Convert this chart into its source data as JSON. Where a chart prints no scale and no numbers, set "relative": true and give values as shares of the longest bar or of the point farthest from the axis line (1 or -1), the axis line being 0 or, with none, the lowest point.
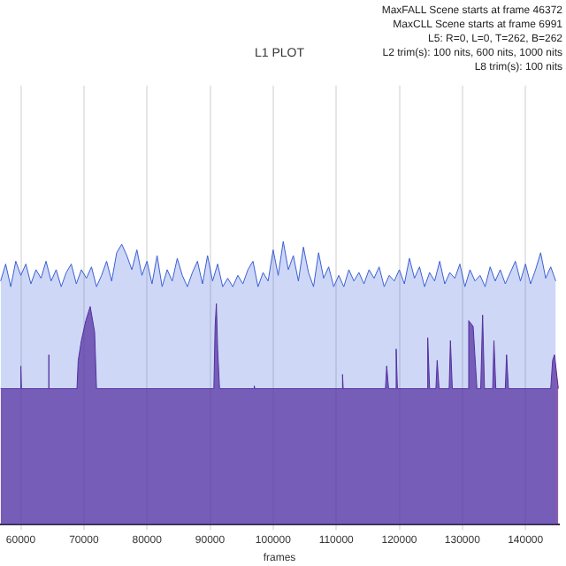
{
  "chart_data": {
    "type": "area",
    "title": "L1 PLOT",
    "xlabel": "frames",
    "relative": true,
    "grid": "x",
    "legend": false,
    "annotations": [
      "MaxFALL Scene starts at frame 46372",
      "MaxCLL Scene starts at frame 6991",
      "L5: R=0, L=0, T=262, B=262",
      "L2 trim(s): 100 nits, 600 nits, 1000 nits",
      "L8 trim(s): 100 nits"
    ],
    "xlim": [
      56700,
      145300
    ],
    "xticks": [
      60000,
      70000,
      80000,
      90000,
      100000,
      110000,
      120000,
      130000,
      140000
    ],
    "series": [
      {
        "color": "#3a5fd8",
        "x": [
          56800,
          57600,
          58400,
          59200,
          60000,
          60800,
          61600,
          62400,
          63200,
          64000,
          64800,
          65600,
          66400,
          67200,
          68000,
          68800,
          69600,
          70400,
          71200,
          72000,
          72800,
          73600,
          74400,
          75200,
          76000,
          76800,
          77600,
          78400,
          79200,
          80000,
          80800,
          81600,
          82400,
          83200,
          84000,
          84800,
          85600,
          86400,
          87200,
          88000,
          88800,
          89600,
          90400,
          91200,
          92000,
          92800,
          93600,
          94400,
          95200,
          96000,
          96800,
          97600,
          98400,
          99200,
          100000,
          100800,
          101600,
          102400,
          103200,
          104000,
          104800,
          105600,
          106400,
          107200,
          108000,
          108800,
          109600,
          110400,
          111200,
          112000,
          112800,
          113600,
          114400,
          115200,
          116000,
          116800,
          117600,
          118400,
          119200,
          120000,
          120800,
          121600,
          122400,
          123200,
          124000,
          124800,
          125600,
          126400,
          127200,
          128000,
          128800,
          129600,
          130400,
          131200,
          132000,
          132800,
          133600,
          134400,
          135200,
          136000,
          136800,
          137600,
          138400,
          139200,
          140000,
          140800,
          141600,
          142400,
          143200,
          144000,
          144800
        ],
        "values": [
          0.86,
          0.92,
          0.84,
          0.93,
          0.88,
          0.92,
          0.85,
          0.9,
          0.87,
          0.93,
          0.86,
          0.9,
          0.84,
          0.89,
          0.92,
          0.85,
          0.9,
          0.87,
          0.91,
          0.84,
          0.88,
          0.93,
          0.86,
          0.96,
          0.99,
          0.95,
          0.9,
          0.97,
          0.88,
          0.93,
          0.85,
          0.95,
          0.84,
          0.9,
          0.86,
          0.94,
          0.88,
          0.84,
          0.89,
          0.93,
          0.85,
          0.95,
          0.86,
          0.92,
          0.84,
          0.87,
          0.84,
          0.88,
          0.85,
          0.9,
          0.93,
          0.84,
          0.89,
          0.86,
          0.97,
          0.88,
          1,
          0.9,
          0.95,
          0.86,
          0.98,
          0.89,
          0.84,
          0.96,
          0.87,
          0.91,
          0.84,
          0.88,
          0.84,
          0.9,
          0.86,
          0.89,
          0.85,
          0.9,
          0.87,
          0.91,
          0.84,
          0.88,
          0.86,
          0.9,
          0.85,
          0.94,
          0.87,
          0.91,
          0.84,
          0.89,
          0.86,
          0.93,
          0.85,
          0.89,
          0.87,
          0.92,
          0.84,
          0.9,
          0.86,
          0.88,
          0.84,
          0.91,
          0.86,
          0.9,
          0.85,
          0.89,
          0.93,
          0.86,
          0.92,
          0.85,
          0.9,
          0.96,
          0.87,
          0.91,
          0.86
        ]
      },
      {
        "color": "#5b1f8f",
        "x": [
          56800,
          59900,
          60000,
          60100,
          64300,
          64400,
          64500,
          68900,
          69100,
          69600,
          70300,
          71000,
          71700,
          72000,
          90600,
          90800,
          91000,
          91200,
          91500,
          96900,
          97000,
          97100,
          110900,
          111000,
          111100,
          117800,
          118000,
          118300,
          119300,
          119500,
          119700,
          124300,
          124500,
          124800,
          125800,
          126000,
          126300,
          127900,
          128100,
          128400,
          130800,
          131000,
          131700,
          132300,
          132900,
          133200,
          133500,
          134800,
          135000,
          135300,
          136800,
          137000,
          137300,
          144000,
          144300,
          144600,
          145200
        ],
        "values": [
          0.48,
          0.48,
          0.56,
          0.48,
          0.48,
          0.6,
          0.48,
          0.48,
          0.58,
          0.65,
          0.72,
          0.77,
          0.68,
          0.48,
          0.48,
          0.7,
          0.78,
          0.62,
          0.48,
          0.48,
          0.49,
          0.48,
          0.48,
          0.53,
          0.48,
          0.48,
          0.56,
          0.48,
          0.48,
          0.62,
          0.48,
          0.48,
          0.66,
          0.48,
          0.48,
          0.58,
          0.48,
          0.48,
          0.65,
          0.48,
          0.48,
          0.72,
          0.7,
          0.48,
          0.48,
          0.74,
          0.48,
          0.48,
          0.65,
          0.48,
          0.48,
          0.6,
          0.48,
          0.48,
          0.58,
          0.6,
          0.48
        ]
      }
    ]
  }
}
